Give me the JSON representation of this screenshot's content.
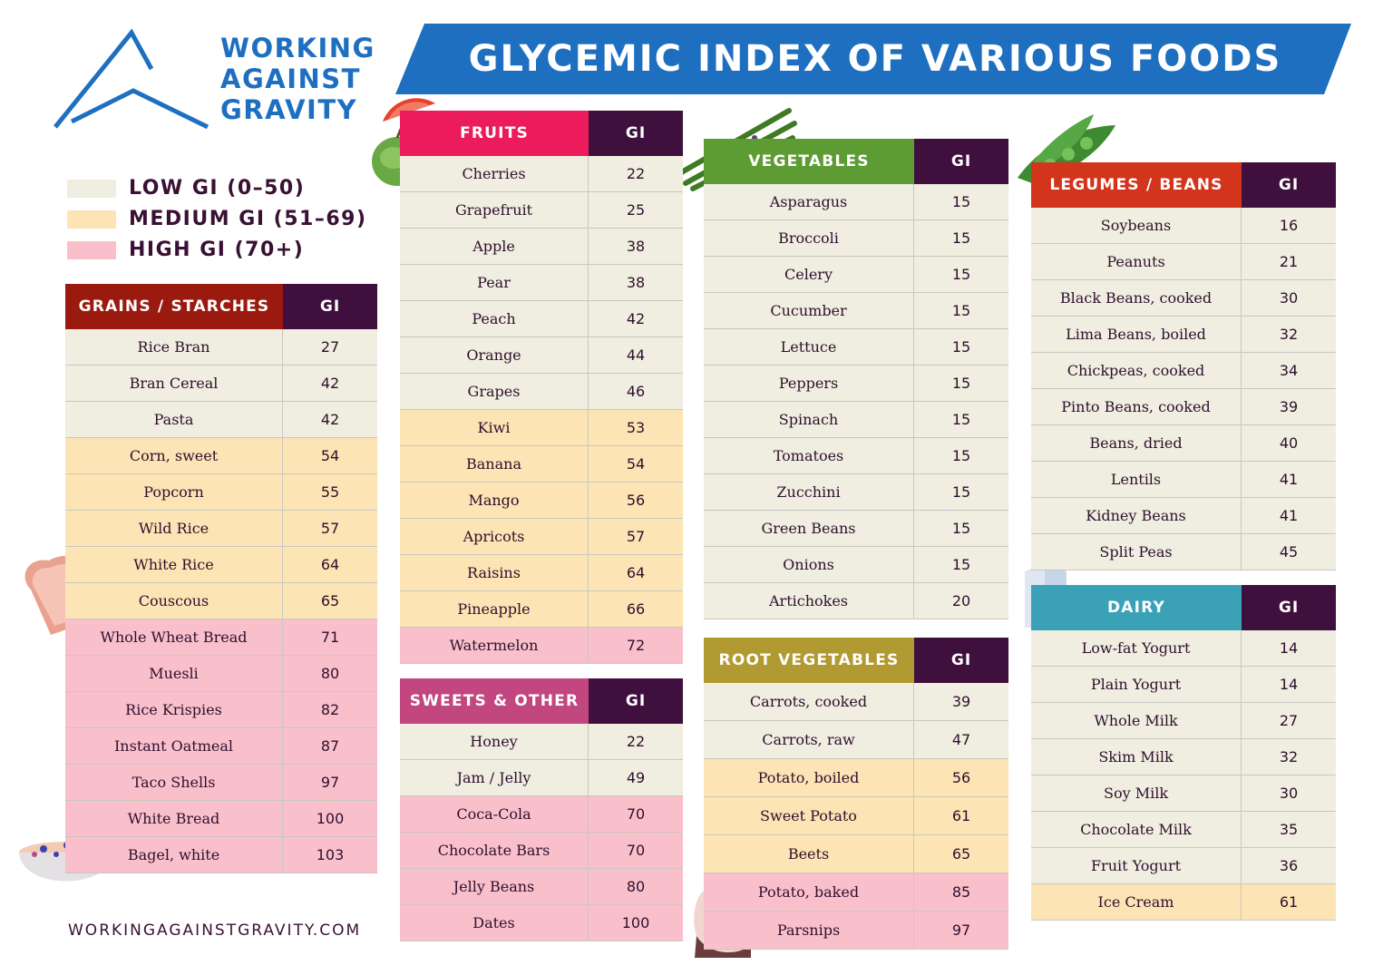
{
  "brand": {
    "lines": [
      "WORKING",
      "AGAINST",
      "GRAVITY"
    ],
    "url": "WORKINGAGAINSTGRAVITY.COM",
    "color": "#1e6fc0"
  },
  "title": "GLYCEMIC INDEX OF VARIOUS FOODS",
  "legend": [
    {
      "label": "LOW GI (0–50)",
      "color": "#efeee0"
    },
    {
      "label": "MEDIUM GI (51–69)",
      "color": "#fde4b4"
    },
    {
      "label": "HIGH GI (70+)",
      "color": "#f9c0cc"
    }
  ],
  "gi_header": "GI",
  "tables": [
    {
      "category": "GRAINS / STARCHES",
      "header_color": "#9b1a10",
      "rows": [
        {
          "name": "Rice Bran",
          "gi": "27",
          "level": "low"
        },
        {
          "name": "Bran Cereal",
          "gi": "42",
          "level": "low"
        },
        {
          "name": "Pasta",
          "gi": "42",
          "level": "low"
        },
        {
          "name": "Corn, sweet",
          "gi": "54",
          "level": "medium"
        },
        {
          "name": "Popcorn",
          "gi": "55",
          "level": "medium"
        },
        {
          "name": "Wild Rice",
          "gi": "57",
          "level": "medium"
        },
        {
          "name": "White Rice",
          "gi": "64",
          "level": "medium"
        },
        {
          "name": "Couscous",
          "gi": "65",
          "level": "medium"
        },
        {
          "name": "Whole Wheat Bread",
          "gi": "71",
          "level": "high"
        },
        {
          "name": "Muesli",
          "gi": "80",
          "level": "high"
        },
        {
          "name": "Rice Krispies",
          "gi": "82",
          "level": "high"
        },
        {
          "name": "Instant Oatmeal",
          "gi": "87",
          "level": "high"
        },
        {
          "name": "Taco Shells",
          "gi": "97",
          "level": "high"
        },
        {
          "name": "White Bread",
          "gi": "100",
          "level": "high"
        },
        {
          "name": "Bagel, white",
          "gi": "103",
          "level": "high"
        }
      ]
    },
    {
      "category": "FRUITS",
      "header_color": "#ec1b5b",
      "rows": [
        {
          "name": "Cherries",
          "gi": "22",
          "level": "low"
        },
        {
          "name": "Grapefruit",
          "gi": "25",
          "level": "low"
        },
        {
          "name": "Apple",
          "gi": "38",
          "level": "low"
        },
        {
          "name": "Pear",
          "gi": "38",
          "level": "low"
        },
        {
          "name": "Peach",
          "gi": "42",
          "level": "low"
        },
        {
          "name": "Orange",
          "gi": "44",
          "level": "low"
        },
        {
          "name": "Grapes",
          "gi": "46",
          "level": "low"
        },
        {
          "name": "Kiwi",
          "gi": "53",
          "level": "medium"
        },
        {
          "name": "Banana",
          "gi": "54",
          "level": "medium"
        },
        {
          "name": "Mango",
          "gi": "56",
          "level": "medium"
        },
        {
          "name": "Apricots",
          "gi": "57",
          "level": "medium"
        },
        {
          "name": "Raisins",
          "gi": "64",
          "level": "medium"
        },
        {
          "name": "Pineapple",
          "gi": "66",
          "level": "medium"
        },
        {
          "name": "Watermelon",
          "gi": "72",
          "level": "high"
        }
      ]
    },
    {
      "category": "SWEETS & OTHER",
      "header_color": "#c2467f",
      "rows": [
        {
          "name": "Honey",
          "gi": "22",
          "level": "low"
        },
        {
          "name": "Jam / Jelly",
          "gi": "49",
          "level": "low"
        },
        {
          "name": "Coca-Cola",
          "gi": "70",
          "level": "high"
        },
        {
          "name": "Chocolate Bars",
          "gi": "70",
          "level": "high"
        },
        {
          "name": "Jelly Beans",
          "gi": "80",
          "level": "high"
        },
        {
          "name": "Dates",
          "gi": "100",
          "level": "high"
        }
      ]
    },
    {
      "category": "VEGETABLES",
      "header_color": "#5d9b33",
      "rows": [
        {
          "name": "Asparagus",
          "gi": "15",
          "level": "low"
        },
        {
          "name": "Broccoli",
          "gi": "15",
          "level": "low"
        },
        {
          "name": "Celery",
          "gi": "15",
          "level": "low"
        },
        {
          "name": "Cucumber",
          "gi": "15",
          "level": "low"
        },
        {
          "name": "Lettuce",
          "gi": "15",
          "level": "low"
        },
        {
          "name": "Peppers",
          "gi": "15",
          "level": "low"
        },
        {
          "name": "Spinach",
          "gi": "15",
          "level": "low"
        },
        {
          "name": "Tomatoes",
          "gi": "15",
          "level": "low"
        },
        {
          "name": "Zucchini",
          "gi": "15",
          "level": "low"
        },
        {
          "name": "Green Beans",
          "gi": "15",
          "level": "low"
        },
        {
          "name": "Onions",
          "gi": "15",
          "level": "low"
        },
        {
          "name": "Artichokes",
          "gi": "20",
          "level": "low"
        }
      ]
    },
    {
      "category": "ROOT VEGETABLES",
      "header_color": "#b29a32",
      "rows": [
        {
          "name": "Carrots, cooked",
          "gi": "39",
          "level": "low"
        },
        {
          "name": "Carrots, raw",
          "gi": "47",
          "level": "low"
        },
        {
          "name": "Potato, boiled",
          "gi": "56",
          "level": "medium"
        },
        {
          "name": "Sweet Potato",
          "gi": "61",
          "level": "medium"
        },
        {
          "name": "Beets",
          "gi": "65",
          "level": "medium"
        },
        {
          "name": "Potato, baked",
          "gi": "85",
          "level": "high"
        },
        {
          "name": "Parsnips",
          "gi": "97",
          "level": "high"
        }
      ]
    },
    {
      "category": "LEGUMES / BEANS",
      "header_color": "#d3341c",
      "rows": [
        {
          "name": "Soybeans",
          "gi": "16",
          "level": "low"
        },
        {
          "name": "Peanuts",
          "gi": "21",
          "level": "low"
        },
        {
          "name": "Black Beans, cooked",
          "gi": "30",
          "level": "low"
        },
        {
          "name": "Lima Beans, boiled",
          "gi": "32",
          "level": "low"
        },
        {
          "name": "Chickpeas, cooked",
          "gi": "34",
          "level": "low"
        },
        {
          "name": "Pinto Beans, cooked",
          "gi": "39",
          "level": "low"
        },
        {
          "name": "Beans, dried",
          "gi": "40",
          "level": "low"
        },
        {
          "name": "Lentils",
          "gi": "41",
          "level": "low"
        },
        {
          "name": "Kidney Beans",
          "gi": "41",
          "level": "low"
        },
        {
          "name": "Split Peas",
          "gi": "45",
          "level": "low"
        }
      ]
    },
    {
      "category": "DAIRY",
      "header_color": "#3aa1b6",
      "rows": [
        {
          "name": "Low-fat Yogurt",
          "gi": "14",
          "level": "low"
        },
        {
          "name": "Plain Yogurt",
          "gi": "14",
          "level": "low"
        },
        {
          "name": "Whole Milk",
          "gi": "27",
          "level": "low"
        },
        {
          "name": "Skim Milk",
          "gi": "32",
          "level": "low"
        },
        {
          "name": "Soy Milk",
          "gi": "30",
          "level": "low"
        },
        {
          "name": "Chocolate Milk",
          "gi": "35",
          "level": "low"
        },
        {
          "name": "Fruit Yogurt",
          "gi": "36",
          "level": "low"
        },
        {
          "name": "Ice Cream",
          "gi": "61",
          "level": "medium"
        }
      ]
    }
  ]
}
